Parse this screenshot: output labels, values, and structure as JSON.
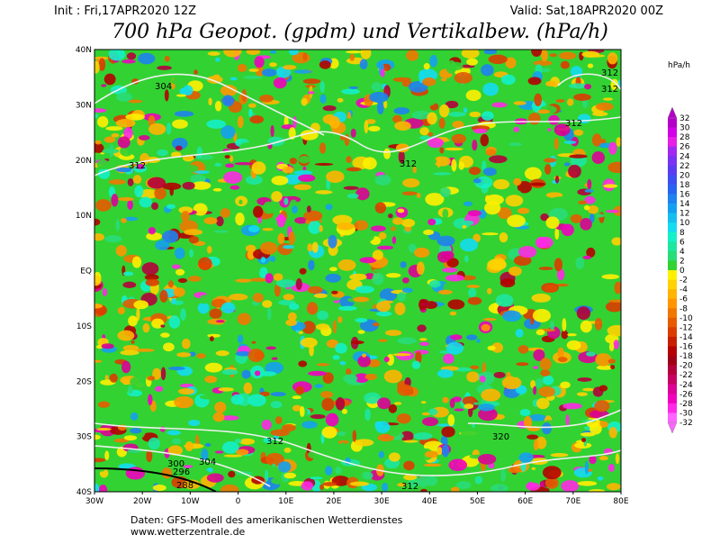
{
  "header": {
    "init": "Init : Fri,17APR2020 12Z",
    "valid": "Valid: Sat,18APR2020 00Z",
    "title": "700 hPa Geopot. (gpdm) und Vertikalbew. (hPa/h)"
  },
  "map": {
    "lon_labels": [
      "30W",
      "20W",
      "10W",
      "0",
      "10E",
      "20E",
      "30E",
      "40E",
      "50E",
      "60E",
      "70E",
      "80E"
    ],
    "lat_labels": [
      "40N",
      "30N",
      "20N",
      "10N",
      "EQ",
      "10S",
      "20S",
      "30S",
      "40S"
    ],
    "contour_labels": [
      "304",
      "312",
      "312",
      "312",
      "312",
      "312",
      "312",
      "320",
      "300",
      "304",
      "296",
      "288",
      "312"
    ]
  },
  "colorbar": {
    "unit": "hPa/h",
    "labels": [
      "32",
      "30",
      "28",
      "26",
      "24",
      "22",
      "20",
      "18",
      "16",
      "14",
      "12",
      "10",
      "8",
      "6",
      "4",
      "2",
      "0",
      "-2",
      "-4",
      "-6",
      "-8",
      "-10",
      "-12",
      "-14",
      "-16",
      "-18",
      "-20",
      "-22",
      "-24",
      "-26",
      "-28",
      "-30",
      "-32"
    ],
    "colors": [
      "#b400c8",
      "#d200e6",
      "#e61ee6",
      "#a028f0",
      "#7832f0",
      "#5a3cf0",
      "#3c50f0",
      "#2864f0",
      "#1e82f0",
      "#14a0f0",
      "#14bef0",
      "#14dcf0",
      "#14f0c8",
      "#1ee6a0",
      "#28dc78",
      "#32d232",
      "#fff000",
      "#ffd200",
      "#ffb400",
      "#ff9600",
      "#f07800",
      "#e65a00",
      "#dc3c00",
      "#c81e00",
      "#b40000",
      "#a00014",
      "#b4003c",
      "#c80064",
      "#dc0096",
      "#f000be",
      "#ff28e6",
      "#ff64ff"
    ]
  },
  "footer": {
    "source": "Daten: GFS-Modell des amerikanischen Wetterdienstes",
    "url": "www.wetterzentrale.de"
  }
}
